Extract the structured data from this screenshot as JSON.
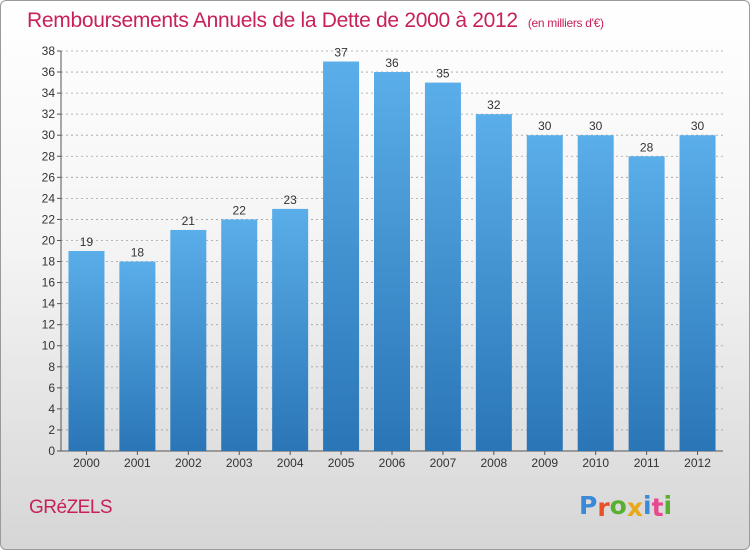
{
  "header": {
    "title": "Remboursements Annuels de la Dette de 2000 à 2012",
    "unit": "(en milliers d'€)"
  },
  "footer": {
    "commune": "GRéZELS",
    "brand_letters": [
      "P",
      "r",
      "o",
      "x",
      "i",
      "t",
      "i"
    ],
    "brand_colors": [
      "#3a8ad8",
      "#e8502a",
      "#58b030",
      "#e8a818",
      "#3a8ad8",
      "#e84890",
      "#58b030"
    ]
  },
  "colors": {
    "bar_top": "#5aaee9",
    "bar_bottom": "#2a75b6",
    "accent": "#c8205a",
    "grid": "#a0a0a0"
  },
  "chart_data": {
    "type": "bar",
    "categories": [
      "2000",
      "2001",
      "2002",
      "2003",
      "2004",
      "2005",
      "2006",
      "2007",
      "2008",
      "2009",
      "2010",
      "2011",
      "2012"
    ],
    "values": [
      19,
      18,
      21,
      22,
      23,
      37,
      36,
      35,
      32,
      30,
      30,
      28,
      30
    ],
    "yticks": [
      0,
      2,
      4,
      6,
      8,
      10,
      12,
      14,
      16,
      18,
      20,
      22,
      24,
      26,
      28,
      30,
      32,
      34,
      36,
      38
    ],
    "ylim": [
      0,
      38
    ],
    "grid": true,
    "legend": "none"
  }
}
